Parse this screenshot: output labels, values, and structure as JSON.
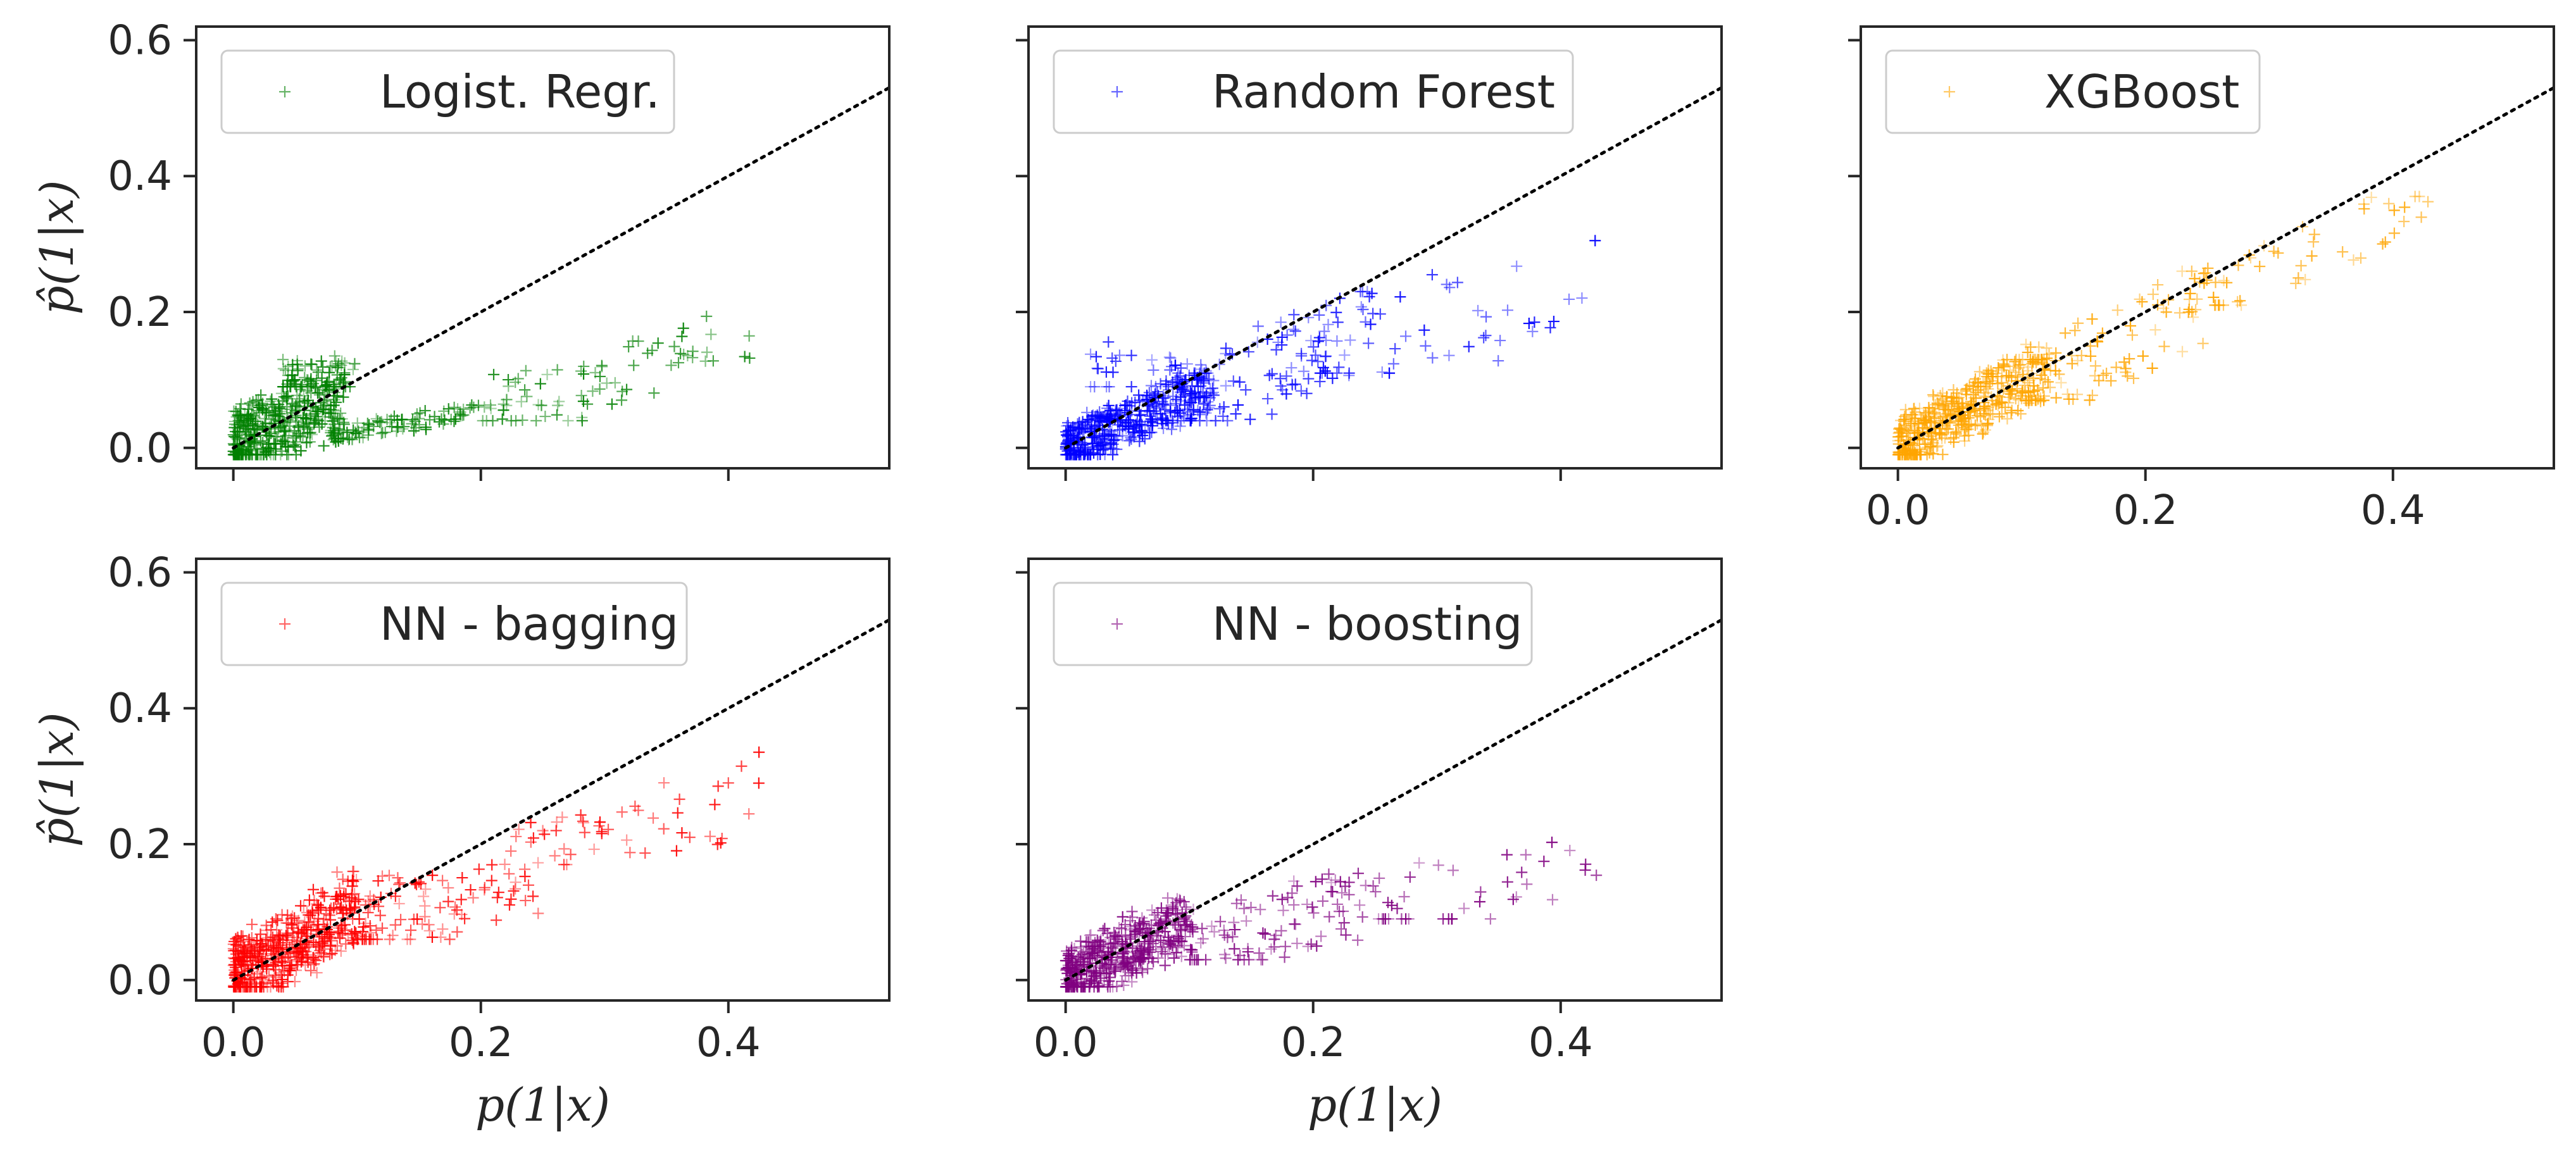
{
  "figure": {
    "title": "",
    "xlabel": "p(1|x)",
    "ylabel": "p̂(1|x)"
  },
  "chart_data": [
    {
      "type": "scatter",
      "name": "logistic-regression",
      "legend": "Logist. Regr.",
      "color": "#008000",
      "xlim": [
        -0.03,
        0.53
      ],
      "ylim": [
        -0.03,
        0.62
      ],
      "xticks": [
        "0.0",
        "0.2",
        "0.4"
      ],
      "yticks": [
        "0.0",
        "0.2",
        "0.4",
        "0.6"
      ],
      "show_xtick_labels": false,
      "show_ytick_labels": true,
      "show_xlabel": false,
      "show_ylabel": true,
      "reference_line": "y=x",
      "clusters": [
        {
          "x": [
            0.0,
            0.09
          ],
          "y": [
            0.0,
            0.15
          ],
          "n": 420,
          "slope": 0.9
        },
        {
          "x": [
            0.04,
            0.1
          ],
          "y": [
            0.1,
            0.19
          ],
          "n": 60,
          "slope": 0.0
        },
        {
          "x": [
            0.08,
            0.2
          ],
          "y": [
            0.02,
            0.06
          ],
          "n": 90,
          "slope": 0.3
        },
        {
          "x": [
            0.2,
            0.42
          ],
          "y": [
            0.05,
            0.19
          ],
          "n": 80,
          "slope": 0.55
        }
      ]
    },
    {
      "type": "scatter",
      "name": "random-forest",
      "legend": "Random Forest",
      "color": "#0000ff",
      "xlim": [
        -0.03,
        0.53
      ],
      "ylim": [
        -0.03,
        0.62
      ],
      "xticks": [
        "0.0",
        "0.2",
        "0.4"
      ],
      "yticks": [
        "0.0",
        "0.2",
        "0.4",
        "0.6"
      ],
      "show_xtick_labels": false,
      "show_ytick_labels": false,
      "show_xlabel": false,
      "show_ylabel": false,
      "reference_line": "y=x",
      "clusters": [
        {
          "x": [
            0.0,
            0.12
          ],
          "y": [
            0.0,
            0.1
          ],
          "n": 420,
          "slope": 0.75
        },
        {
          "x": [
            0.08,
            0.25
          ],
          "y": [
            0.05,
            0.22
          ],
          "n": 110,
          "slope": 0.8
        },
        {
          "x": [
            0.2,
            0.43
          ],
          "y": [
            0.12,
            0.34
          ],
          "n": 50,
          "slope": 0.6
        },
        {
          "x": [
            0.02,
            0.1
          ],
          "y": [
            0.1,
            0.26
          ],
          "n": 25,
          "slope": 0.0
        }
      ]
    },
    {
      "type": "scatter",
      "name": "xgboost",
      "legend": "XGBoost",
      "color": "#ffa500",
      "xlim": [
        -0.03,
        0.53
      ],
      "ylim": [
        -0.03,
        0.62
      ],
      "xticks": [
        "0.0",
        "0.2",
        "0.4"
      ],
      "yticks": [
        "0.0",
        "0.2",
        "0.4",
        "0.6"
      ],
      "show_xtick_labels": true,
      "show_ytick_labels": false,
      "show_xlabel": false,
      "show_ylabel": false,
      "reference_line": "y=x",
      "clusters": [
        {
          "x": [
            0.0,
            0.12
          ],
          "y": [
            0.0,
            0.12
          ],
          "n": 450,
          "slope": 1.0
        },
        {
          "x": [
            0.1,
            0.25
          ],
          "y": [
            0.08,
            0.25
          ],
          "n": 100,
          "slope": 0.95
        },
        {
          "x": [
            0.25,
            0.43
          ],
          "y": [
            0.22,
            0.36
          ],
          "n": 45,
          "slope": 0.8
        }
      ]
    },
    {
      "type": "scatter",
      "name": "nn-bagging",
      "legend": "NN - bagging",
      "color": "#ff0000",
      "xlim": [
        -0.03,
        0.53
      ],
      "ylim": [
        -0.03,
        0.62
      ],
      "xticks": [
        "0.0",
        "0.2",
        "0.4"
      ],
      "yticks": [
        "0.0",
        "0.2",
        "0.4",
        "0.6"
      ],
      "show_xtick_labels": true,
      "show_ytick_labels": true,
      "show_xlabel": true,
      "show_ylabel": true,
      "reference_line": "y=x",
      "clusters": [
        {
          "x": [
            0.0,
            0.1
          ],
          "y": [
            0.0,
            0.15
          ],
          "n": 480,
          "slope": 1.1
        },
        {
          "x": [
            0.1,
            0.25
          ],
          "y": [
            0.07,
            0.24
          ],
          "n": 110,
          "slope": 0.7
        },
        {
          "x": [
            0.25,
            0.43
          ],
          "y": [
            0.18,
            0.34
          ],
          "n": 45,
          "slope": 0.5
        }
      ]
    },
    {
      "type": "scatter",
      "name": "nn-boosting",
      "legend": "NN - boosting",
      "color": "#800080",
      "xlim": [
        -0.03,
        0.53
      ],
      "ylim": [
        -0.03,
        0.62
      ],
      "xticks": [
        "0.0",
        "0.2",
        "0.4"
      ],
      "yticks": [
        "0.0",
        "0.2",
        "0.4",
        "0.6"
      ],
      "show_xtick_labels": true,
      "show_ytick_labels": false,
      "show_xlabel": true,
      "show_ylabel": false,
      "reference_line": "y=x",
      "clusters": [
        {
          "x": [
            0.0,
            0.1
          ],
          "y": [
            0.0,
            0.12
          ],
          "n": 460,
          "slope": 0.9
        },
        {
          "x": [
            0.1,
            0.25
          ],
          "y": [
            0.04,
            0.2
          ],
          "n": 100,
          "slope": 0.6
        },
        {
          "x": [
            0.25,
            0.43
          ],
          "y": [
            0.1,
            0.27
          ],
          "n": 40,
          "slope": 0.4
        }
      ]
    }
  ]
}
